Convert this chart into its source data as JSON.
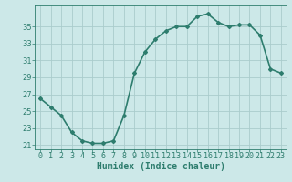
{
  "title": "",
  "xlabel": "Humidex (Indice chaleur)",
  "x": [
    0,
    1,
    2,
    3,
    4,
    5,
    6,
    7,
    8,
    9,
    10,
    11,
    12,
    13,
    14,
    15,
    16,
    17,
    18,
    19,
    20,
    21,
    22,
    23
  ],
  "y": [
    26.5,
    25.5,
    24.5,
    22.5,
    21.5,
    21.2,
    21.2,
    21.5,
    24.5,
    29.5,
    32.0,
    33.5,
    34.5,
    35.0,
    35.0,
    36.2,
    36.5,
    35.5,
    35.0,
    35.2,
    35.2,
    34.0,
    30.0,
    29.5
  ],
  "line_color": "#2e7d6e",
  "marker": "D",
  "marker_size": 2.0,
  "bg_color": "#cce8e8",
  "grid_color": "#aacccc",
  "ylim": [
    20.5,
    37.5
  ],
  "yticks": [
    21,
    23,
    25,
    27,
    29,
    31,
    33,
    35
  ],
  "xlim": [
    -0.5,
    23.5
  ],
  "xlabel_fontsize": 7,
  "tick_fontsize": 6,
  "line_width": 1.2
}
